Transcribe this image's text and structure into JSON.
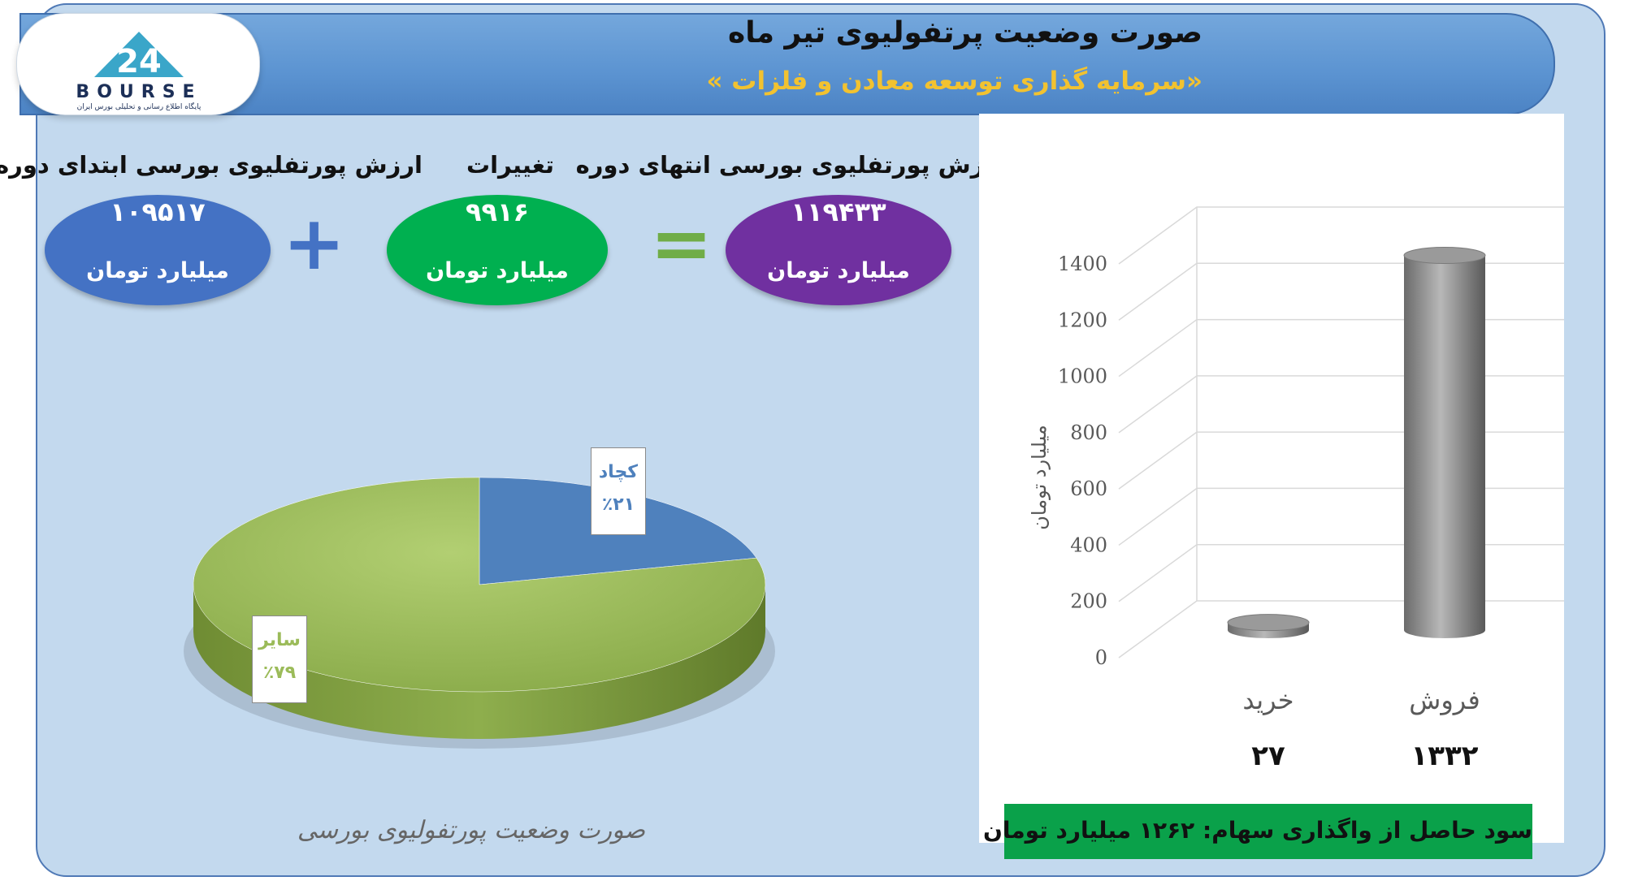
{
  "header": {
    "title": "صورت وضعیت پرتفولیوی تیر ماه",
    "subtitle": "«سرمایه گذاری توسعه معادن و فلزات »"
  },
  "logo": {
    "brand": "BOURSE",
    "number": "24",
    "tagline": "پایگاه اطلاع رسانی و تحلیلی بورس ایران"
  },
  "summary": {
    "end_label": "ارزش پورتفلیوی بورسی انتهای دوره",
    "end_value": "۱۱۹۴۳۳",
    "changes_label": "تغییرات",
    "changes_value": "۹۹۱۶",
    "start_label": "ارزش پورتفلیوی بورسی ابتدای دوره",
    "start_value": "۱۰۹۵۱۷",
    "unit": "میلیارد تومان",
    "plus_symbol": "+",
    "equals_symbol": "=",
    "colors": {
      "end": "#7030a0",
      "changes": "#00b050",
      "start": "#4472c4",
      "plus": "#4472c4",
      "equals": "#70ad47"
    }
  },
  "pie_caption": "صورت وضعیت پورتفولیوی بورسی",
  "profit_text": "سود حاصل از واگذاری سهام: ۱۲۶۲ میلیارد تومان",
  "chart_data": [
    {
      "type": "pie",
      "slices": [
        {
          "label": "کچاد",
          "value": 21,
          "value_text": "٪۲۱",
          "color": "#4f81bd"
        },
        {
          "label": "سایر",
          "value": 79,
          "value_text": "٪۷۹",
          "color": "#9bbb59"
        }
      ],
      "caption": "صورت وضعیت پورتفولیوی بورسی"
    },
    {
      "type": "bar",
      "categories": [
        "خرید",
        "فروش"
      ],
      "values": [
        27,
        1332
      ],
      "value_labels": [
        "۲۷",
        "۱۳۳۲"
      ],
      "ylabel": "میلیارد تومان",
      "ylim": [
        0,
        1400
      ],
      "yticks": [
        0,
        200,
        400,
        600,
        800,
        1000,
        1200,
        1400
      ],
      "grid": true,
      "color": "#7f7f7f"
    }
  ]
}
